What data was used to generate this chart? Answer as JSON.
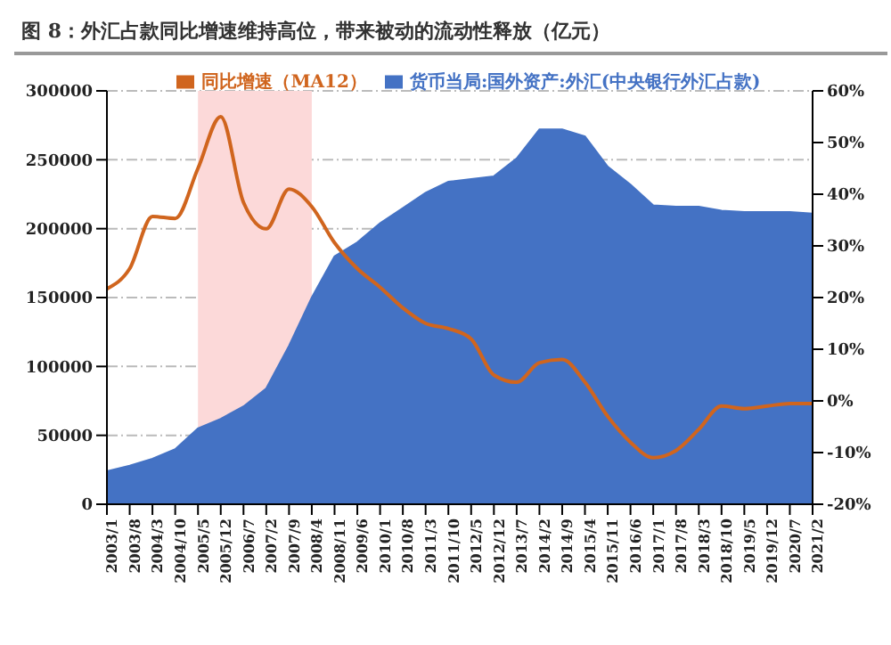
{
  "chart_data": {
    "type": "area",
    "title": "图 8：外汇占款同比增速维持高位，带来被动的流动性释放（亿元）",
    "categories": [
      "2003/1",
      "2003/8",
      "2004/3",
      "2004/10",
      "2005/5",
      "2005/12",
      "2006/7",
      "2007/2",
      "2007/9",
      "2008/4",
      "2008/11",
      "2009/6",
      "2010/1",
      "2010/8",
      "2011/3",
      "2011/10",
      "2012/5",
      "2012/12",
      "2013/7",
      "2014/2",
      "2014/9",
      "2015/4",
      "2015/11",
      "2016/6",
      "2017/1",
      "2017/8",
      "2018/3",
      "2018/10",
      "2019/5",
      "2019/12",
      "2020/7",
      "2021/2"
    ],
    "series": [
      {
        "name": "货币当局:国外资产:外汇(中央银行外汇占款)",
        "color": "#4472c4",
        "values": [
          24000,
          28000,
          33000,
          40000,
          55000,
          62000,
          71000,
          84000,
          115000,
          150000,
          180000,
          190000,
          204000,
          215000,
          226000,
          234000,
          236000,
          238000,
          251000,
          272000,
          272000,
          267000,
          245000,
          232000,
          217000,
          216000,
          216000,
          213000,
          212000,
          212000,
          212000,
          211000
        ]
      },
      {
        "name": "同比增速（MA12）",
        "type": "line",
        "axis": "y2",
        "color": "#d0651e",
        "values": [
          21.7,
          25.6,
          35.7,
          35.3,
          45,
          55,
          38.4,
          33.3,
          41,
          37.6,
          30.6,
          25.6,
          22,
          18,
          15,
          14,
          12,
          5,
          3.6,
          7.4,
          8,
          3.6,
          -3,
          -8,
          -11,
          -9.6,
          -5.5,
          -1,
          -1.5,
          -1,
          -0.5,
          -0.5
        ]
      }
    ],
    "ylim": [
      0,
      300000
    ],
    "yticks": [
      0,
      50000,
      100000,
      150000,
      200000,
      250000,
      300000
    ],
    "y2lim": [
      -20,
      60
    ],
    "y2ticks": [
      {
        "value": -20,
        "label": "-20%"
      },
      {
        "value": -10,
        "label": "-10%"
      },
      {
        "value": 0,
        "label": "0%"
      },
      {
        "value": 10,
        "label": "10%"
      },
      {
        "value": 20,
        "label": "20%"
      },
      {
        "value": 30,
        "label": "30%"
      },
      {
        "value": 40,
        "label": "40%"
      },
      {
        "value": 50,
        "label": "50%"
      },
      {
        "value": 60,
        "label": "60%"
      }
    ],
    "bands": [
      {
        "axis": "x",
        "from": "2005/5",
        "to": "2008/4",
        "color": "#fcd9d9"
      }
    ],
    "grid": "y",
    "legend": "top",
    "marker": "none"
  }
}
